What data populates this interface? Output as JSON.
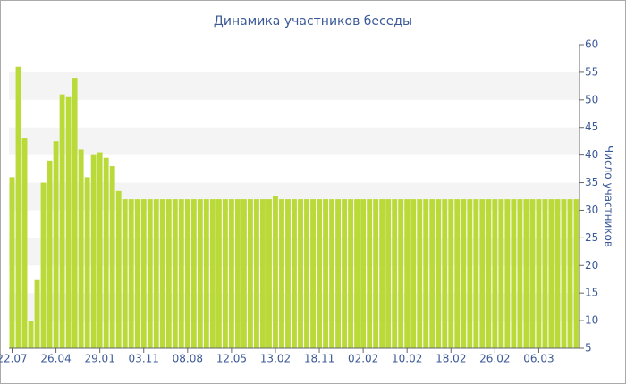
{
  "chart_data": {
    "type": "bar",
    "title": "Динамика участников беседы",
    "y_label": "Число участников",
    "categories": [
      "22.07",
      null,
      null,
      null,
      null,
      null,
      null,
      "26.04",
      null,
      null,
      null,
      null,
      null,
      null,
      "29.01",
      null,
      null,
      null,
      null,
      null,
      null,
      "03.11",
      null,
      null,
      null,
      null,
      null,
      null,
      "08.08",
      null,
      null,
      null,
      null,
      null,
      null,
      "12.05",
      null,
      null,
      null,
      null,
      null,
      null,
      "13.02",
      null,
      null,
      null,
      null,
      null,
      null,
      "18.11",
      null,
      null,
      null,
      null,
      null,
      null,
      "02.02",
      null,
      null,
      null,
      null,
      null,
      null,
      "10.02",
      null,
      null,
      null,
      null,
      null,
      null,
      "18.02",
      null,
      null,
      null,
      null,
      null,
      null,
      "26.02",
      null,
      null,
      null,
      null,
      null,
      null,
      "06.03",
      null,
      null,
      null,
      null,
      null,
      null
    ],
    "values": [
      36,
      56,
      43,
      10,
      17.5,
      35,
      39,
      42.5,
      51,
      50.5,
      54,
      41,
      36,
      40,
      40.5,
      39.5,
      38,
      33.5,
      32,
      32,
      32,
      32,
      32,
      32,
      32,
      32,
      32,
      32,
      32,
      32,
      32,
      32,
      32,
      32,
      32,
      32,
      32,
      32,
      32,
      32,
      32,
      32,
      32.5,
      32,
      32,
      32,
      32,
      32,
      32,
      32,
      32,
      32,
      32,
      32,
      32,
      32,
      32,
      32,
      32,
      32,
      32,
      32,
      32,
      32,
      32,
      32,
      32,
      32,
      32,
      32,
      32,
      32,
      32,
      32,
      32,
      32,
      32,
      32,
      32,
      32,
      32,
      32,
      32,
      32,
      32,
      32,
      32,
      32,
      32,
      32,
      32
    ],
    "color": "#bada3a",
    "ylim": [
      5,
      60
    ],
    "yticks": [
      5,
      10,
      15,
      20,
      25,
      30,
      35,
      40,
      45,
      50,
      55,
      60
    ],
    "grid": true
  }
}
